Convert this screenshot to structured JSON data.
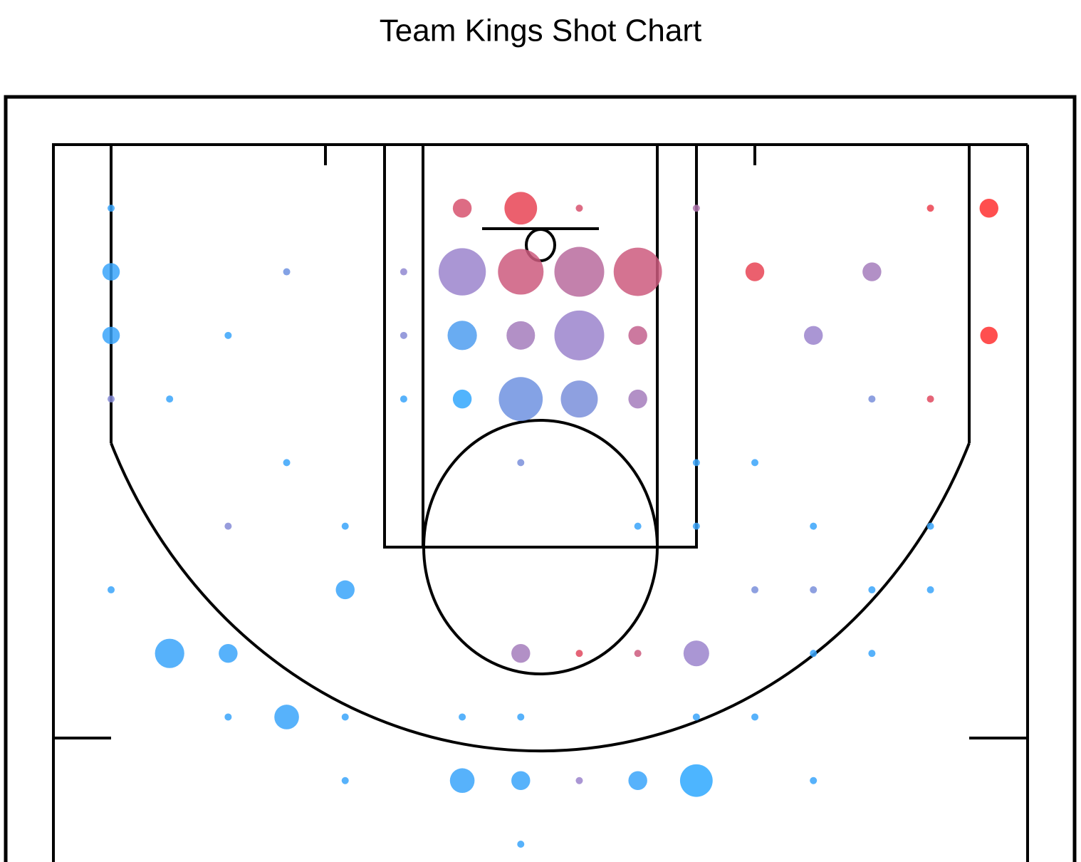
{
  "chart_data": {
    "type": "scatter",
    "title": "Team Kings Shot Chart",
    "xlim": [
      -1.01,
      15.66
    ],
    "ylim": [
      -1,
      10.28
    ],
    "colormap": [
      "#2ea8ff",
      "#9b84cc",
      "#ff3030"
    ],
    "clim": [
      0,
      1
    ],
    "series": [
      {
        "x": [
          0,
          6,
          7,
          8,
          10,
          14,
          15,
          0,
          3,
          5,
          6,
          7,
          8,
          9,
          11,
          13,
          0,
          2,
          5,
          6,
          7,
          8,
          9,
          12,
          15,
          0,
          1,
          5,
          6,
          7,
          8,
          9,
          13,
          14,
          3,
          7,
          10,
          11,
          2,
          4,
          9,
          10,
          12,
          14,
          0,
          4,
          11,
          12,
          13,
          14,
          1,
          2,
          7,
          8,
          9,
          10,
          12,
          13,
          2,
          3,
          4,
          6,
          7,
          10,
          11,
          4,
          6,
          7,
          8,
          9,
          10,
          12,
          7
        ],
        "y": [
          0,
          0,
          0,
          0,
          0,
          0,
          0,
          1,
          1,
          1,
          1,
          1,
          1,
          1,
          1,
          1,
          2,
          2,
          2,
          2,
          2,
          2,
          2,
          2,
          2,
          3,
          3,
          3,
          3,
          3,
          3,
          3,
          3,
          3,
          4,
          4,
          4,
          4,
          5,
          5,
          5,
          5,
          5,
          5,
          6,
          6,
          6,
          6,
          6,
          6,
          7,
          7,
          7,
          7,
          7,
          7,
          7,
          7,
          8,
          8,
          8,
          8,
          8,
          8,
          8,
          9,
          9,
          9,
          9,
          9,
          9,
          9,
          10
        ],
        "sizes": [
          1,
          7,
          21,
          1,
          1,
          1,
          7,
          6,
          1,
          1,
          44,
          41,
          49,
          46,
          7,
          7,
          6,
          1,
          1,
          17,
          16,
          49,
          7,
          7,
          6,
          1,
          1,
          1,
          7,
          38,
          27,
          7,
          1,
          1,
          1,
          1,
          1,
          1,
          1,
          1,
          1,
          1,
          1,
          1,
          1,
          7,
          1,
          1,
          1,
          1,
          17,
          7,
          7,
          1,
          1,
          13,
          1,
          1,
          1,
          12,
          1,
          1,
          1,
          1,
          1,
          1,
          12,
          7,
          1,
          7,
          21,
          1,
          1
        ],
        "values": [
          0.05,
          0.8,
          0.88,
          0.8,
          0.6,
          0.9,
          1,
          0.05,
          0.3,
          0.45,
          0.5,
          0.75,
          0.65,
          0.75,
          0.88,
          0.55,
          0.05,
          0.05,
          0.4,
          0.15,
          0.55,
          0.5,
          0.7,
          0.5,
          1,
          0.4,
          0.05,
          0.05,
          0.02,
          0.3,
          0.35,
          0.55,
          0.35,
          0.85,
          0.05,
          0.35,
          0.05,
          0.05,
          0.4,
          0.05,
          0.05,
          0.05,
          0.05,
          0.05,
          0.05,
          0.05,
          0.35,
          0.35,
          0.05,
          0.05,
          0.05,
          0.05,
          0.55,
          0.85,
          0.75,
          0.5,
          0.05,
          0.05,
          0.05,
          0.05,
          0.05,
          0.05,
          0.05,
          0.05,
          0.05,
          0.05,
          0.05,
          0.05,
          0.5,
          0.05,
          0,
          0.05,
          0.05
        ]
      }
    ]
  }
}
